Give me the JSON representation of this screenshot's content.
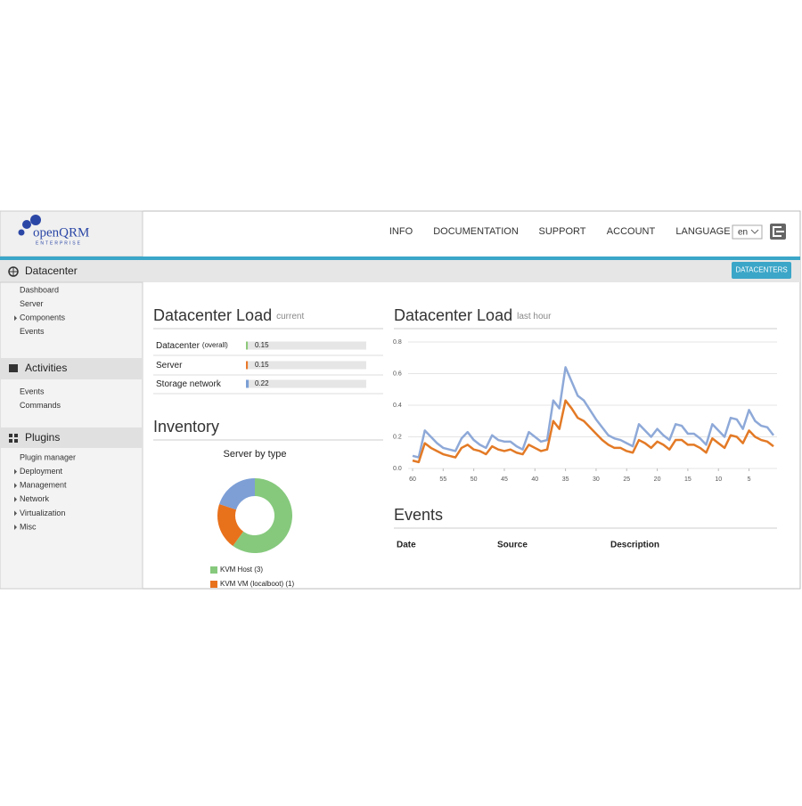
{
  "header": {
    "logo": "openQRM",
    "logo_sub": "ENTERPRISE",
    "nav": [
      "INFO",
      "DOCUMENTATION",
      "SUPPORT",
      "ACCOUNT",
      "LANGUAGE"
    ],
    "language": "en"
  },
  "toolbar": {
    "button": "DATACENTERS"
  },
  "sidebar": [
    {
      "title": "Datacenter",
      "items": [
        {
          "label": "Dashboard",
          "expandable": false
        },
        {
          "label": "Server",
          "expandable": false
        },
        {
          "label": "Components",
          "expandable": true
        },
        {
          "label": "Events",
          "expandable": false
        }
      ]
    },
    {
      "title": "Activities",
      "items": [
        {
          "label": "Events",
          "expandable": false
        },
        {
          "label": "Commands",
          "expandable": false
        }
      ]
    },
    {
      "title": "Plugins",
      "items": [
        {
          "label": "Plugin manager",
          "expandable": false
        },
        {
          "label": "Deployment",
          "expandable": true
        },
        {
          "label": "Management",
          "expandable": true
        },
        {
          "label": "Network",
          "expandable": true
        },
        {
          "label": "Virtualization",
          "expandable": true
        },
        {
          "label": "Misc",
          "expandable": true
        }
      ]
    }
  ],
  "load_current": {
    "title": "Datacenter Load",
    "subtitle": "current",
    "rows": [
      {
        "label": "Datacenter",
        "note": "(overall)",
        "value": 0.15,
        "color": "#8dc97b"
      },
      {
        "label": "Server",
        "note": null,
        "value": 0.15,
        "color": "#e8782a"
      },
      {
        "label": "Storage network",
        "note": null,
        "value": 0.22,
        "color": "#7b9fd4"
      }
    ]
  },
  "inventory": {
    "title": "Inventory",
    "chart": {
      "type": "donut",
      "title": "Server by type",
      "labels": [
        "KVM Host (3)",
        "KVM VM (localboot) (1)",
        null
      ],
      "values": [
        3,
        1,
        1
      ],
      "colors": [
        "#86c97d",
        "#e8711c",
        "#7d9fd6"
      ]
    }
  },
  "load_history": {
    "title": "Datacenter Load",
    "subtitle": "last hour",
    "chart": {
      "type": "line",
      "x": [
        60,
        59,
        58,
        57,
        56,
        55,
        54,
        53,
        52,
        51,
        50,
        49,
        48,
        47,
        46,
        45,
        44,
        43,
        42,
        41,
        40,
        39,
        38,
        37,
        36,
        35,
        34,
        33,
        32,
        31,
        30,
        29,
        28,
        27,
        26,
        25,
        24,
        23,
        22,
        21,
        20,
        19,
        18,
        17,
        16,
        15,
        14,
        13,
        12,
        11,
        10,
        9,
        8,
        7,
        6,
        5,
        4,
        3,
        2,
        1
      ],
      "xlim": [
        60,
        1
      ],
      "xticks": [
        60,
        55,
        50,
        45,
        40,
        35,
        30,
        25,
        20,
        15,
        10,
        5
      ],
      "ylim": [
        0,
        0.8
      ],
      "yticks": [
        {
          "value": 0,
          "label": "0.0"
        },
        0.2,
        0.4,
        0.6,
        0.8
      ],
      "grid": true,
      "series": [
        {
          "color": "#8ea9d8",
          "values": [
            0.08,
            0.07,
            0.24,
            0.2,
            0.16,
            0.13,
            0.12,
            0.11,
            0.19,
            0.23,
            0.18,
            0.15,
            0.13,
            0.21,
            0.18,
            0.17,
            0.17,
            0.14,
            0.12,
            0.23,
            0.2,
            0.17,
            0.18,
            0.43,
            0.38,
            0.64,
            0.55,
            0.46,
            0.43,
            0.37,
            0.31,
            0.26,
            0.21,
            0.19,
            0.18,
            0.16,
            0.14,
            0.28,
            0.24,
            0.2,
            0.25,
            0.21,
            0.18,
            0.28,
            0.27,
            0.22,
            0.22,
            0.19,
            0.15,
            0.28,
            0.24,
            0.2,
            0.32,
            0.31,
            0.25,
            0.37,
            0.3,
            0.27,
            0.26,
            0.21
          ]
        },
        {
          "color": "#e37a26",
          "values": [
            0.05,
            0.04,
            0.16,
            0.13,
            0.11,
            0.09,
            0.08,
            0.07,
            0.13,
            0.15,
            0.12,
            0.11,
            0.09,
            0.14,
            0.12,
            0.11,
            0.12,
            0.1,
            0.09,
            0.15,
            0.13,
            0.11,
            0.12,
            0.3,
            0.25,
            0.43,
            0.38,
            0.32,
            0.3,
            0.26,
            0.22,
            0.18,
            0.15,
            0.13,
            0.13,
            0.11,
            0.1,
            0.18,
            0.16,
            0.13,
            0.17,
            0.15,
            0.12,
            0.18,
            0.18,
            0.15,
            0.15,
            0.13,
            0.1,
            0.19,
            0.16,
            0.13,
            0.21,
            0.2,
            0.16,
            0.24,
            0.2,
            0.18,
            0.17,
            0.14
          ]
        }
      ]
    }
  },
  "events": {
    "title": "Events",
    "columns": [
      "Date",
      "Source",
      "Description"
    ]
  }
}
